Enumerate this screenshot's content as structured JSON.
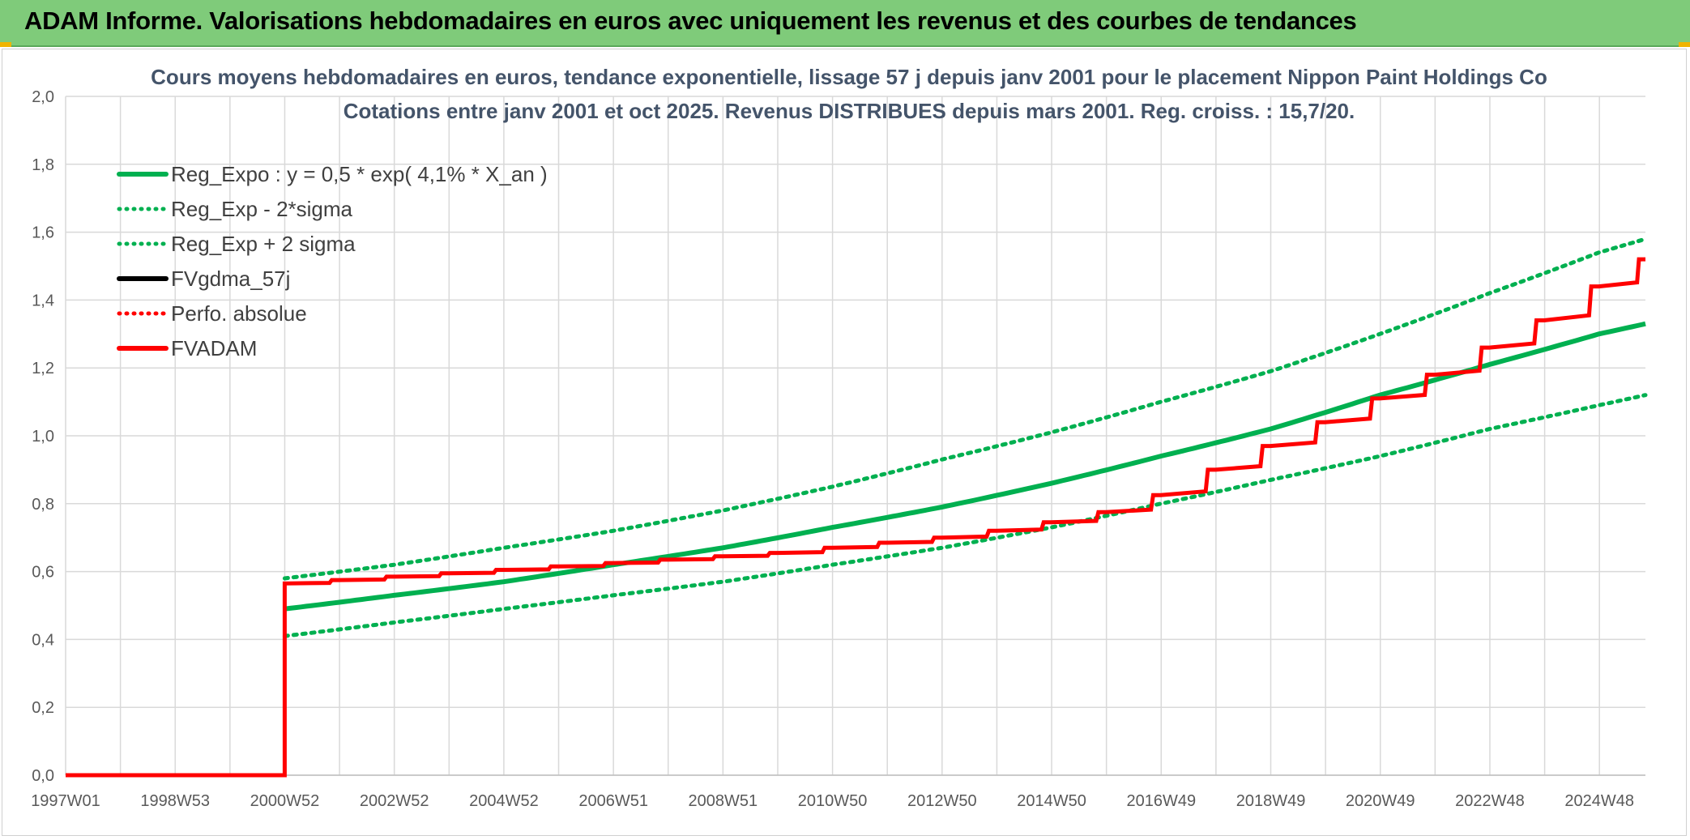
{
  "banner": {
    "title": "ADAM Informe. Valorisations hebdomadaires en euros avec uniquement les revenus et des courbes de tendances"
  },
  "chart_data": {
    "type": "line",
    "title": "Cours moyens hebdomadaires en euros, tendance exponentielle, lissage 57 j depuis janv 2001 pour le placement Nippon Paint Holdings Co",
    "subtitle": "Cotations entre janv 2001 et oct 2025. Revenus DISTRIBUES depuis mars 2001. Reg. croiss. : 15,7/20.",
    "x_ticks": [
      "1997W01",
      "1998W53",
      "2000W52",
      "2002W52",
      "2004W52",
      "2006W51",
      "2008W51",
      "2010W50",
      "2012W50",
      "2014W50",
      "2016W49",
      "2018W49",
      "2020W49",
      "2022W48",
      "2024W48"
    ],
    "x_range": [
      1997.0,
      2025.85
    ],
    "y_ticks": [
      "0,0",
      "0,2",
      "0,4",
      "0,6",
      "0,8",
      "1,0",
      "1,2",
      "1,4",
      "1,6",
      "1,8",
      "2,0"
    ],
    "ylim": [
      0,
      2.0
    ],
    "grid": true,
    "legend_position": "top-left",
    "series": [
      {
        "name": "Reg_Expo : y = 0,5 * exp( 4,1% *  X_an )",
        "color": "#00b050",
        "style": "solid",
        "x": [
          2001.0,
          2003.0,
          2005.0,
          2007.0,
          2009.0,
          2011.0,
          2013.0,
          2015.0,
          2017.0,
          2019.0,
          2021.0,
          2023.0,
          2025.0,
          2025.85
        ],
        "values": [
          0.49,
          0.53,
          0.57,
          0.62,
          0.67,
          0.73,
          0.79,
          0.86,
          0.94,
          1.02,
          1.12,
          1.21,
          1.3,
          1.33
        ]
      },
      {
        "name": "Reg_Exp - 2*sigma",
        "color": "#00b050",
        "style": "dotted",
        "x": [
          2001.0,
          2003.0,
          2005.0,
          2007.0,
          2009.0,
          2011.0,
          2013.0,
          2015.0,
          2017.0,
          2019.0,
          2021.0,
          2023.0,
          2025.0,
          2025.85
        ],
        "values": [
          0.41,
          0.45,
          0.49,
          0.53,
          0.57,
          0.62,
          0.67,
          0.73,
          0.8,
          0.87,
          0.94,
          1.02,
          1.09,
          1.12
        ]
      },
      {
        "name": "Reg_Exp + 2 sigma",
        "color": "#00b050",
        "style": "dotted",
        "x": [
          2001.0,
          2003.0,
          2005.0,
          2007.0,
          2009.0,
          2011.0,
          2013.0,
          2015.0,
          2017.0,
          2019.0,
          2021.0,
          2023.0,
          2025.0,
          2025.85
        ],
        "values": [
          0.58,
          0.62,
          0.67,
          0.72,
          0.78,
          0.85,
          0.93,
          1.01,
          1.1,
          1.19,
          1.3,
          1.42,
          1.54,
          1.58
        ]
      },
      {
        "name": "FVgdma_57j",
        "color": "#000000",
        "style": "solid",
        "x": [
          2001.0,
          2002.0,
          2003.0,
          2004.0,
          2005.0,
          2006.0,
          2007.0,
          2008.0,
          2009.0,
          2010.0,
          2011.0,
          2012.0,
          2013.0,
          2014.0,
          2015.0,
          2016.0,
          2017.0,
          2018.0,
          2019.0,
          2020.0,
          2021.0,
          2022.0,
          2023.0,
          2024.0,
          2025.0,
          2025.85
        ],
        "values": [
          0.565,
          0.575,
          0.585,
          0.595,
          0.605,
          0.615,
          0.625,
          0.635,
          0.645,
          0.655,
          0.67,
          0.685,
          0.7,
          0.72,
          0.745,
          0.775,
          0.825,
          0.9,
          0.97,
          1.04,
          1.11,
          1.18,
          1.26,
          1.34,
          1.44,
          1.52
        ]
      },
      {
        "name": "Perfo. absolue",
        "color": "#ff0000",
        "style": "dotted",
        "x": [],
        "values": []
      },
      {
        "name": "FVADAM",
        "color": "#ff0000",
        "style": "solid-step",
        "x": [
          1997.0,
          2001.0,
          2001.0,
          2002.0,
          2003.0,
          2004.0,
          2005.0,
          2006.0,
          2007.0,
          2008.0,
          2009.0,
          2010.0,
          2011.0,
          2012.0,
          2013.0,
          2014.0,
          2015.0,
          2016.0,
          2017.0,
          2018.0,
          2019.0,
          2020.0,
          2021.0,
          2022.0,
          2023.0,
          2024.0,
          2025.0,
          2025.85
        ],
        "values": [
          0.0,
          0.0,
          0.565,
          0.575,
          0.585,
          0.595,
          0.605,
          0.615,
          0.625,
          0.635,
          0.645,
          0.655,
          0.67,
          0.685,
          0.7,
          0.72,
          0.745,
          0.775,
          0.825,
          0.9,
          0.97,
          1.04,
          1.11,
          1.18,
          1.26,
          1.34,
          1.44,
          1.52
        ]
      }
    ]
  }
}
